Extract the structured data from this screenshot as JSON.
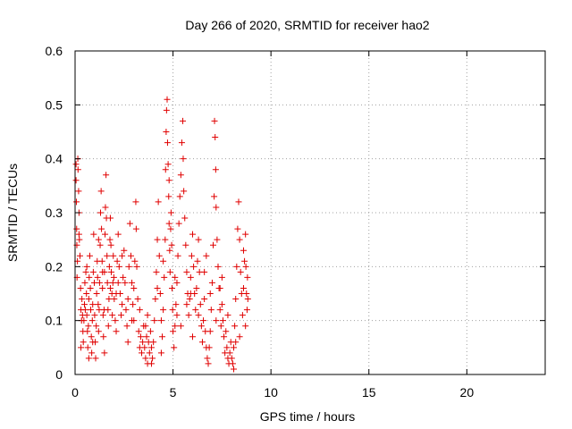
{
  "chart_data": {
    "type": "scatter",
    "title": "Day 266 of 2020, SRMTID for receiver hao2",
    "xlabel": "GPS time / hours",
    "ylabel": "SRMTID / TECUs",
    "xlim": [
      0,
      24
    ],
    "ylim": [
      0,
      0.6
    ],
    "xticks": [
      "0",
      "5",
      "10",
      "15",
      "20"
    ],
    "xtick_values": [
      0,
      5,
      10,
      15,
      20
    ],
    "yticks": [
      "0",
      "0.1",
      "0.2",
      "0.3",
      "0.4",
      "0.5",
      "0.6"
    ],
    "ytick_values": [
      0,
      0.1,
      0.2,
      0.3,
      0.4,
      0.5,
      0.6
    ],
    "grid": true,
    "marker": "plus",
    "color": "#e00000",
    "series": [
      {
        "points": [
          [
            0.05,
            0.39
          ],
          [
            0.05,
            0.36
          ],
          [
            0.07,
            0.32
          ],
          [
            0.08,
            0.27
          ],
          [
            0.09,
            0.24
          ],
          [
            0.1,
            0.18
          ],
          [
            0.12,
            0.21
          ],
          [
            0.14,
            0.4
          ],
          [
            0.15,
            0.38
          ],
          [
            0.18,
            0.34
          ],
          [
            0.2,
            0.3
          ],
          [
            0.22,
            0.25
          ],
          [
            0.25,
            0.22
          ],
          [
            0.28,
            0.16
          ],
          [
            0.3,
            0.12
          ],
          [
            0.33,
            0.1
          ],
          [
            0.35,
            0.14
          ],
          [
            0.38,
            0.11
          ],
          [
            0.4,
            0.08
          ],
          [
            0.42,
            0.06
          ],
          [
            0.45,
            0.1
          ],
          [
            0.48,
            0.13
          ],
          [
            0.5,
            0.17
          ],
          [
            0.52,
            0.12
          ],
          [
            0.55,
            0.19
          ],
          [
            0.58,
            0.15
          ],
          [
            0.6,
            0.11
          ],
          [
            0.63,
            0.08
          ],
          [
            0.65,
            0.05
          ],
          [
            0.68,
            0.09
          ],
          [
            0.7,
            0.14
          ],
          [
            0.72,
            0.18
          ],
          [
            0.75,
            0.22
          ],
          [
            0.78,
            0.16
          ],
          [
            0.8,
            0.12
          ],
          [
            0.83,
            0.07
          ],
          [
            0.85,
            0.04
          ],
          [
            0.88,
            0.1
          ],
          [
            0.9,
            0.13
          ],
          [
            0.93,
            0.19
          ],
          [
            0.95,
            0.26
          ],
          [
            0.98,
            0.17
          ],
          [
            1.0,
            0.11
          ],
          [
            1.03,
            0.06
          ],
          [
            1.05,
            0.03
          ],
          [
            1.08,
            0.09
          ],
          [
            1.1,
            0.15
          ],
          [
            1.13,
            0.21
          ],
          [
            1.15,
            0.18
          ],
          [
            1.18,
            0.13
          ],
          [
            1.2,
            0.08
          ],
          [
            1.23,
            0.12
          ],
          [
            1.25,
            0.17
          ],
          [
            1.28,
            0.24
          ],
          [
            1.3,
            0.3
          ],
          [
            1.33,
            0.34
          ],
          [
            1.35,
            0.27
          ],
          [
            1.38,
            0.21
          ],
          [
            1.4,
            0.16
          ],
          [
            1.43,
            0.11
          ],
          [
            1.45,
            0.07
          ],
          [
            1.48,
            0.12
          ],
          [
            1.5,
            0.19
          ],
          [
            1.53,
            0.26
          ],
          [
            1.55,
            0.31
          ],
          [
            1.58,
            0.37
          ],
          [
            1.6,
            0.29
          ],
          [
            1.63,
            0.22
          ],
          [
            1.65,
            0.17
          ],
          [
            1.68,
            0.12
          ],
          [
            1.7,
            0.09
          ],
          [
            1.73,
            0.14
          ],
          [
            1.75,
            0.2
          ],
          [
            1.78,
            0.25
          ],
          [
            1.8,
            0.29
          ],
          [
            1.83,
            0.24
          ],
          [
            1.85,
            0.19
          ],
          [
            1.88,
            0.15
          ],
          [
            1.9,
            0.11
          ],
          [
            1.93,
            0.17
          ],
          [
            1.95,
            0.22
          ],
          [
            1.98,
            0.18
          ],
          [
            2.0,
            0.14
          ],
          [
            2.05,
            0.1
          ],
          [
            2.1,
            0.15
          ],
          [
            2.15,
            0.21
          ],
          [
            2.2,
            0.26
          ],
          [
            2.25,
            0.2
          ],
          [
            2.3,
            0.15
          ],
          [
            2.35,
            0.11
          ],
          [
            2.4,
            0.13
          ],
          [
            2.45,
            0.18
          ],
          [
            2.5,
            0.23
          ],
          [
            2.55,
            0.17
          ],
          [
            2.6,
            0.12
          ],
          [
            2.65,
            0.09
          ],
          [
            2.7,
            0.14
          ],
          [
            2.75,
            0.2
          ],
          [
            2.8,
            0.28
          ],
          [
            2.85,
            0.22
          ],
          [
            2.9,
            0.17
          ],
          [
            2.95,
            0.13
          ],
          [
            3.0,
            0.16
          ],
          [
            3.05,
            0.21
          ],
          [
            3.1,
            0.32
          ],
          [
            3.12,
            0.27
          ],
          [
            3.15,
            0.2
          ],
          [
            3.2,
            0.14
          ],
          [
            3.25,
            0.08
          ],
          [
            3.3,
            0.05
          ],
          [
            3.35,
            0.07
          ],
          [
            3.4,
            0.04
          ],
          [
            3.45,
            0.06
          ],
          [
            3.5,
            0.09
          ],
          [
            3.55,
            0.05
          ],
          [
            3.6,
            0.03
          ],
          [
            3.65,
            0.07
          ],
          [
            3.7,
            0.11
          ],
          [
            3.75,
            0.06
          ],
          [
            3.8,
            0.04
          ],
          [
            3.85,
            0.08
          ],
          [
            3.9,
            0.05
          ],
          [
            3.95,
            0.03
          ],
          [
            4.0,
            0.06
          ],
          [
            4.05,
            0.1
          ],
          [
            4.1,
            0.14
          ],
          [
            4.15,
            0.19
          ],
          [
            4.2,
            0.25
          ],
          [
            4.25,
            0.32
          ],
          [
            4.3,
            0.22
          ],
          [
            4.35,
            0.15
          ],
          [
            4.4,
            0.1
          ],
          [
            4.45,
            0.07
          ],
          [
            4.5,
            0.12
          ],
          [
            4.55,
            0.18
          ],
          [
            4.6,
            0.25
          ],
          [
            4.62,
            0.38
          ],
          [
            4.65,
            0.45
          ],
          [
            4.67,
            0.49
          ],
          [
            4.7,
            0.51
          ],
          [
            4.72,
            0.43
          ],
          [
            4.75,
            0.39
          ],
          [
            4.78,
            0.33
          ],
          [
            4.8,
            0.28
          ],
          [
            4.83,
            0.23
          ],
          [
            4.85,
            0.19
          ],
          [
            4.88,
            0.27
          ],
          [
            4.9,
            0.3
          ],
          [
            4.93,
            0.24
          ],
          [
            4.95,
            0.16
          ],
          [
            4.98,
            0.12
          ],
          [
            5.0,
            0.08
          ],
          [
            5.05,
            0.05
          ],
          [
            5.1,
            0.09
          ],
          [
            5.15,
            0.13
          ],
          [
            5.2,
            0.17
          ],
          [
            5.25,
            0.22
          ],
          [
            5.3,
            0.28
          ],
          [
            5.35,
            0.33
          ],
          [
            5.4,
            0.37
          ],
          [
            5.45,
            0.43
          ],
          [
            5.5,
            0.47
          ],
          [
            5.52,
            0.4
          ],
          [
            5.55,
            0.34
          ],
          [
            5.6,
            0.29
          ],
          [
            5.65,
            0.24
          ],
          [
            5.7,
            0.19
          ],
          [
            5.75,
            0.15
          ],
          [
            5.8,
            0.11
          ],
          [
            5.85,
            0.14
          ],
          [
            5.9,
            0.18
          ],
          [
            5.95,
            0.22
          ],
          [
            6.0,
            0.26
          ],
          [
            6.05,
            0.2
          ],
          [
            6.1,
            0.15
          ],
          [
            6.15,
            0.12
          ],
          [
            6.2,
            0.16
          ],
          [
            6.25,
            0.21
          ],
          [
            6.3,
            0.25
          ],
          [
            6.35,
            0.19
          ],
          [
            6.4,
            0.13
          ],
          [
            6.45,
            0.09
          ],
          [
            6.5,
            0.06
          ],
          [
            6.55,
            0.1
          ],
          [
            6.6,
            0.14
          ],
          [
            6.65,
            0.08
          ],
          [
            6.7,
            0.05
          ],
          [
            6.75,
            0.03
          ],
          [
            6.8,
            0.02
          ],
          [
            6.85,
            0.05
          ],
          [
            6.9,
            0.08
          ],
          [
            6.95,
            0.12
          ],
          [
            7.0,
            0.17
          ],
          [
            7.05,
            0.24
          ],
          [
            7.1,
            0.33
          ],
          [
            7.12,
            0.47
          ],
          [
            7.15,
            0.44
          ],
          [
            7.18,
            0.38
          ],
          [
            7.2,
            0.31
          ],
          [
            7.25,
            0.25
          ],
          [
            7.3,
            0.2
          ],
          [
            7.35,
            0.16
          ],
          [
            7.4,
            0.12
          ],
          [
            7.45,
            0.09
          ],
          [
            7.5,
            0.13
          ],
          [
            7.55,
            0.1
          ],
          [
            7.6,
            0.07
          ],
          [
            7.65,
            0.04
          ],
          [
            7.7,
            0.08
          ],
          [
            7.75,
            0.05
          ],
          [
            7.8,
            0.03
          ],
          [
            7.85,
            0.02
          ],
          [
            7.9,
            0.04
          ],
          [
            7.95,
            0.06
          ],
          [
            8.0,
            0.03
          ],
          [
            8.05,
            0.02
          ],
          [
            8.1,
            0.05
          ],
          [
            8.15,
            0.09
          ],
          [
            8.2,
            0.14
          ],
          [
            8.25,
            0.2
          ],
          [
            8.3,
            0.27
          ],
          [
            8.35,
            0.32
          ],
          [
            8.4,
            0.25
          ],
          [
            8.45,
            0.19
          ],
          [
            8.5,
            0.15
          ],
          [
            8.55,
            0.11
          ],
          [
            8.6,
            0.16
          ],
          [
            8.65,
            0.21
          ],
          [
            8.7,
            0.26
          ],
          [
            8.72,
            0.2
          ],
          [
            8.75,
            0.15
          ],
          [
            8.78,
            0.12
          ],
          [
            8.8,
            0.18
          ],
          [
            8.82,
            0.14
          ],
          [
            0.3,
            0.05
          ],
          [
            0.6,
            0.2
          ],
          [
            0.9,
            0.06
          ],
          [
            1.2,
            0.25
          ],
          [
            1.5,
            0.04
          ],
          [
            1.8,
            0.16
          ],
          [
            2.1,
            0.08
          ],
          [
            2.4,
            0.22
          ],
          [
            2.7,
            0.06
          ],
          [
            3.0,
            0.1
          ],
          [
            3.3,
            0.12
          ],
          [
            3.6,
            0.09
          ],
          [
            3.9,
            0.02
          ],
          [
            4.2,
            0.16
          ],
          [
            4.5,
            0.21
          ],
          [
            4.8,
            0.36
          ],
          [
            5.1,
            0.18
          ],
          [
            5.4,
            0.09
          ],
          [
            5.7,
            0.13
          ],
          [
            6.0,
            0.07
          ],
          [
            6.3,
            0.11
          ],
          [
            6.6,
            0.19
          ],
          [
            6.9,
            0.15
          ],
          [
            7.2,
            0.1
          ],
          [
            7.5,
            0.18
          ],
          [
            7.8,
            0.11
          ],
          [
            8.1,
            0.01
          ],
          [
            8.4,
            0.07
          ],
          [
            8.7,
            0.09
          ],
          [
            0.2,
            0.26
          ],
          [
            0.7,
            0.03
          ],
          [
            1.4,
            0.19
          ],
          [
            2.2,
            0.17
          ],
          [
            2.9,
            0.1
          ],
          [
            3.7,
            0.02
          ],
          [
            4.4,
            0.04
          ],
          [
            5.2,
            0.11
          ],
          [
            5.9,
            0.15
          ],
          [
            6.7,
            0.22
          ],
          [
            7.4,
            0.16
          ],
          [
            8.2,
            0.06
          ],
          [
            8.6,
            0.23
          ]
        ]
      }
    ]
  }
}
